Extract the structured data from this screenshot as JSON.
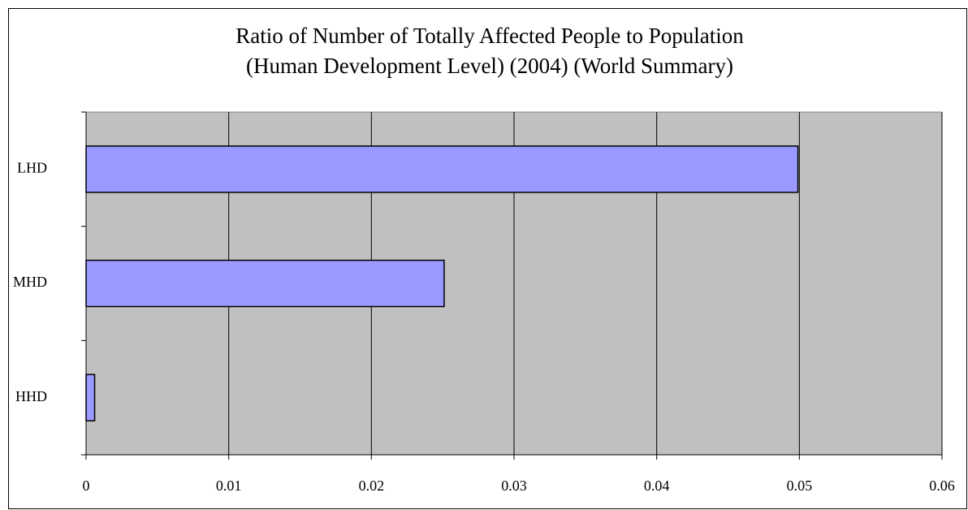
{
  "chart_data": {
    "type": "hbar",
    "title": [
      "Ratio of Number of Totally Affected People to Population",
      "(Human Development Level) (2004) (World Summary)"
    ],
    "categories": [
      "LHD",
      "MHD",
      "HHD"
    ],
    "values": [
      0.0499,
      0.0251,
      0.0006
    ],
    "color": "#9999ff",
    "xlim": [
      0,
      0.06
    ],
    "xticks": [
      0,
      0.01,
      0.02,
      0.03,
      0.04,
      0.05,
      0.06
    ],
    "grid": true
  }
}
